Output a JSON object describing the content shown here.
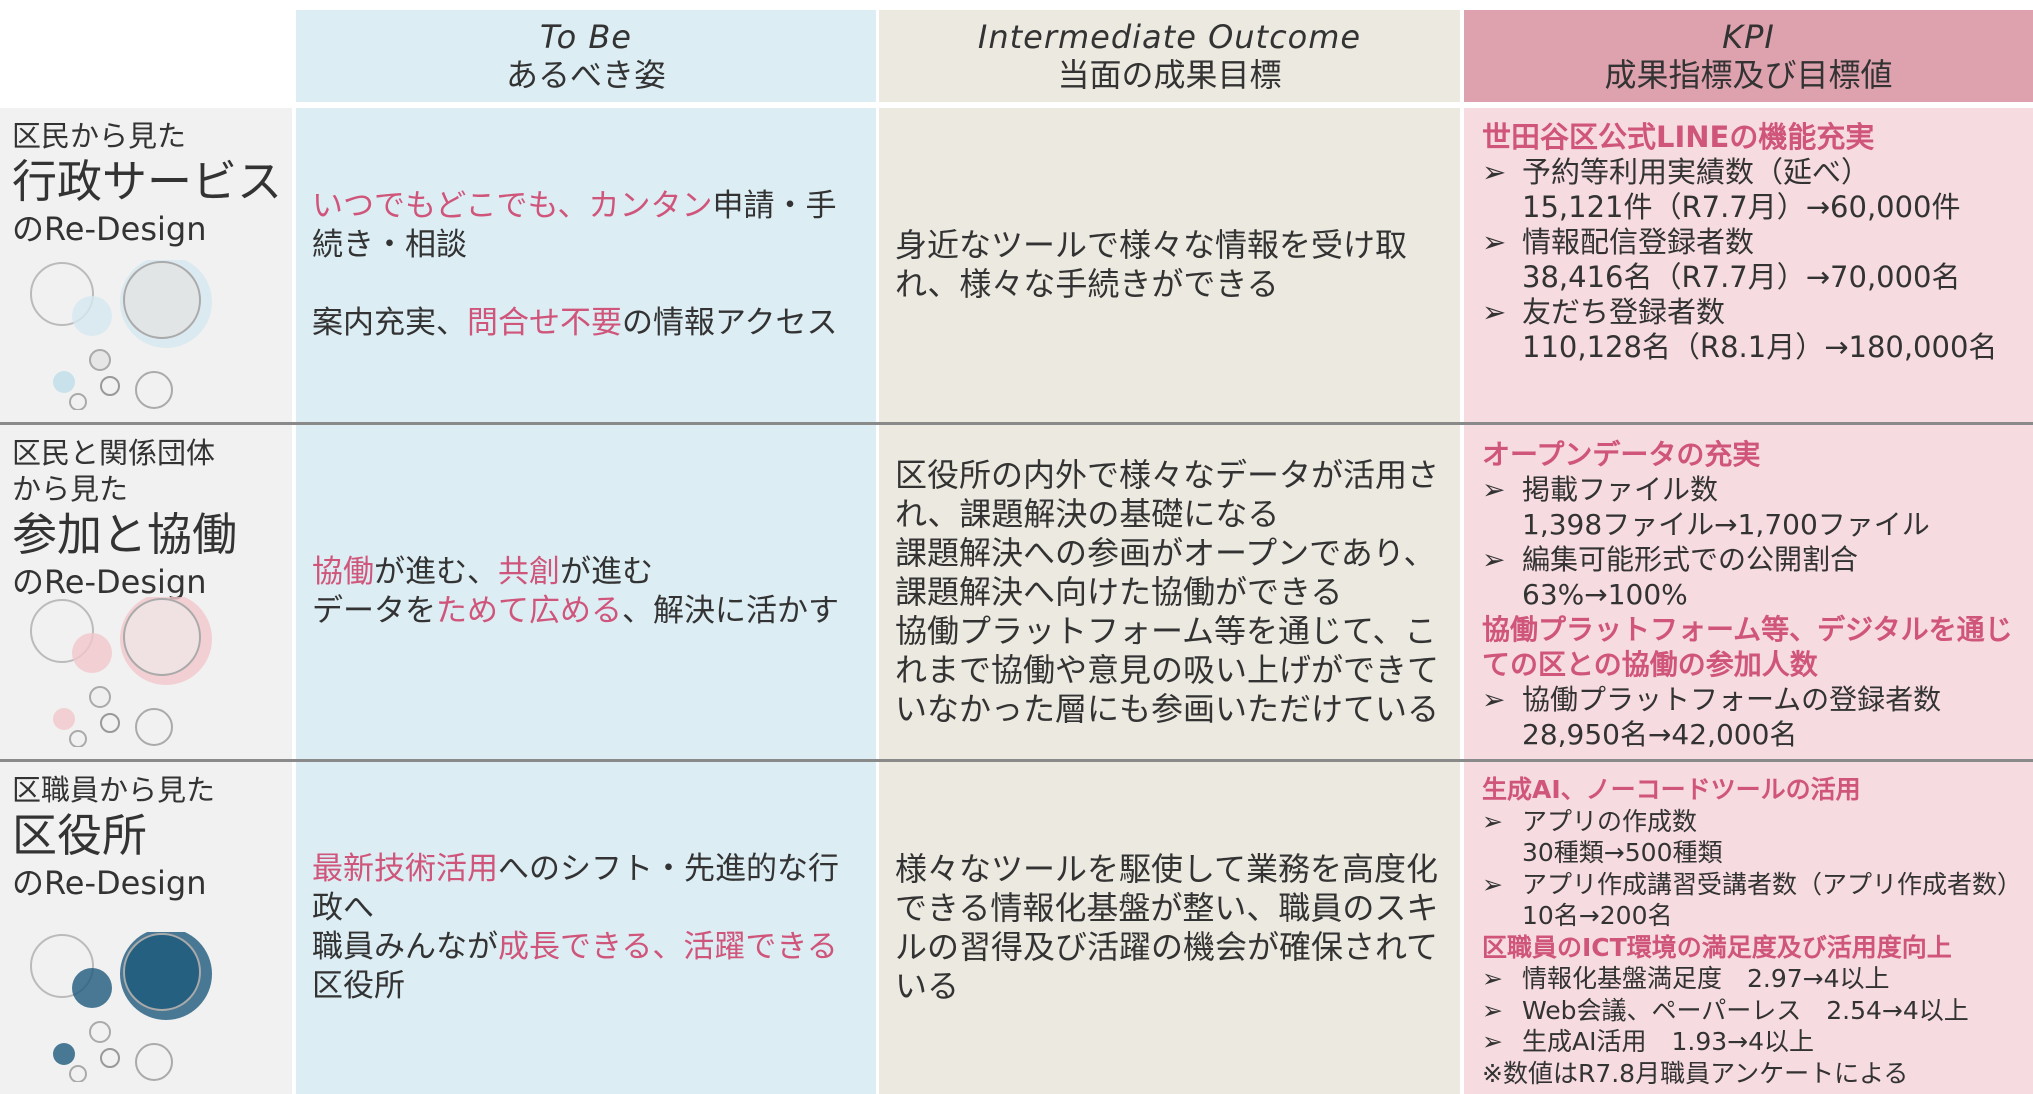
{
  "header": {
    "columns": [
      {
        "en": "To Be",
        "ja": "あるべき姿"
      },
      {
        "en": "Intermediate  Outcome",
        "ja": "当面の成果目標"
      },
      {
        "en": "KPI",
        "ja": "成果指標及び目標値"
      }
    ]
  },
  "rows": [
    {
      "label": {
        "pre": [
          "区民から見た"
        ],
        "main": "行政サービス",
        "post": "のRe-Design"
      },
      "tobe": {
        "spaced": true,
        "paragraphs": [
          [
            {
              "t": "いつでもどこでも、カンタン",
              "em": true
            },
            {
              "t": "申請・手続き・相談"
            }
          ],
          [
            {
              "t": "案内充実、"
            },
            {
              "t": "問合せ不要",
              "em": true
            },
            {
              "t": "の情報アクセス"
            }
          ]
        ]
      },
      "outcome": [
        "身近なツールで様々な情報を受け取れ、様々な手続きができる"
      ],
      "kpi": [
        {
          "heading": "世田谷区公式LINEの機能充実"
        },
        {
          "item": "予約等利用実績数（延べ）",
          "detail": "15,121件（R7.7月）→60,000件"
        },
        {
          "item": "情報配信登録者数",
          "detail": "38,416名（R7.7月）→70,000名"
        },
        {
          "item": "友だち登録者数",
          "detail": "110,128名（R8.1月）→180,000名"
        }
      ]
    },
    {
      "label": {
        "pre": [
          "区民と関係団体",
          "から見た"
        ],
        "main": "参加と協働",
        "post": "のRe-Design"
      },
      "tobe": {
        "spaced": false,
        "paragraphs": [
          [
            {
              "t": "協働",
              "em": true
            },
            {
              "t": "が進む、"
            },
            {
              "t": "共創",
              "em": true
            },
            {
              "t": "が進む"
            }
          ],
          [
            {
              "t": "データを"
            },
            {
              "t": "ためて広める",
              "em": true
            },
            {
              "t": "、解決に活かす"
            }
          ]
        ]
      },
      "outcome": [
        "区役所の内外で様々なデータが活用され、課題解決の基礎になる",
        "課題解決への参画がオープンであり、",
        "課題解決へ向けた協働ができる",
        "協働プラットフォーム等を通じて、これまで協働や意見の吸い上げができていなかった層にも参画いただけている"
      ],
      "kpi": [
        {
          "heading": "オープンデータの充実"
        },
        {
          "item": "掲載ファイル数",
          "detail": "1,398ファイル→1,700ファイル"
        },
        {
          "item": "編集可能形式での公開割合",
          "detail": "63%→100%"
        },
        {
          "heading": "協働プラットフォーム等、デジタルを通じての区との協働の参加人数"
        },
        {
          "item": "協働プラットフォームの登録者数",
          "detail": "28,950名→42,000名"
        }
      ]
    },
    {
      "label": {
        "pre": [
          "区職員から見た"
        ],
        "main": "区役所",
        "post": "のRe-Design"
      },
      "tobe": {
        "spaced": false,
        "paragraphs": [
          [
            {
              "t": "最新技術活用",
              "em": true
            },
            {
              "t": "へのシフト・先進的な行政へ"
            }
          ],
          [
            {
              "t": "職員みんなが"
            },
            {
              "t": "成長できる、活躍できる",
              "em": true
            },
            {
              "t": "区役所"
            }
          ]
        ]
      },
      "outcome": [
        "様々なツールを駆使して業務を高度化できる情報化基盤が整い、職員のスキルの習得及び活躍の機会が確保されている"
      ],
      "kpi": [
        {
          "heading": "生成AI、ノーコードツールの活用"
        },
        {
          "item": "アプリの作成数",
          "detail": "30種類→500種類"
        },
        {
          "item": "アプリ作成講習受講者数（アプリ作成者数）",
          "detail": "10名→200名"
        },
        {
          "heading": "区職員のICT環境の満足度及び活用度向上"
        },
        {
          "item": "情報化基盤満足度　2.97→4以上"
        },
        {
          "item": "Web会議、ペーパーレス　2.54→4以上"
        },
        {
          "item": "生成AI活用　1.93→4以上"
        },
        {
          "note": "※数値はR7.8月職員アンケートによる"
        }
      ]
    }
  ]
}
